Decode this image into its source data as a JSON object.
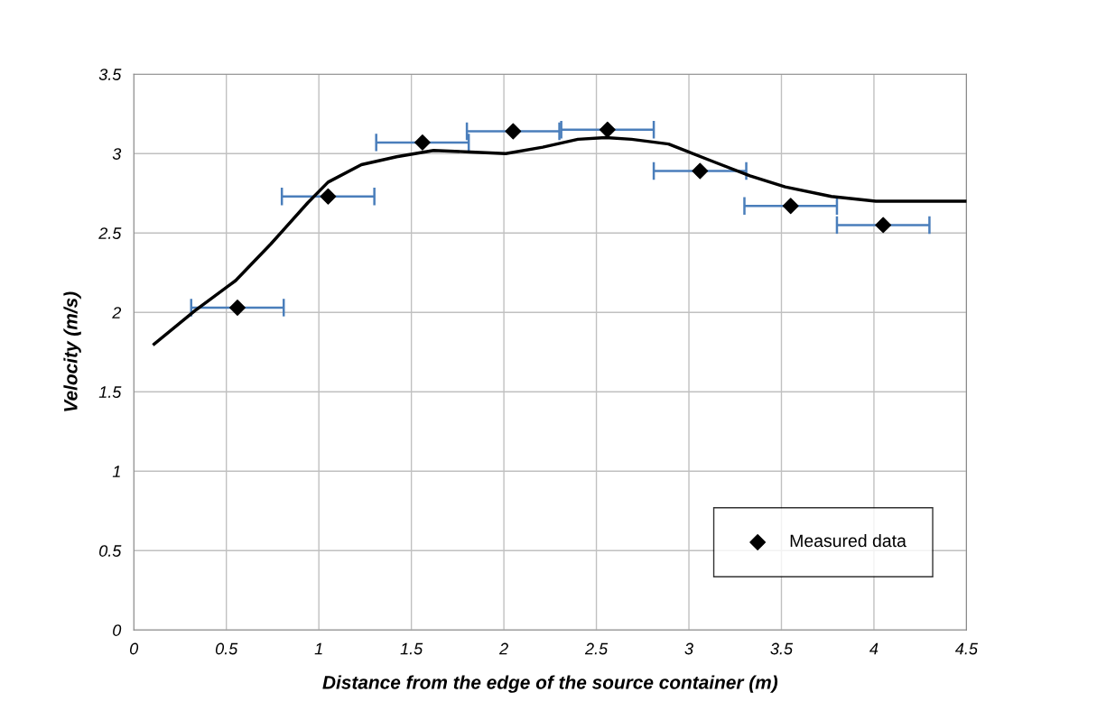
{
  "chart_data": {
    "type": "scatter",
    "xlabel": "Distance from the edge of the source container (m)",
    "ylabel": "Velocity (m/s)",
    "xlim": [
      0,
      4.5
    ],
    "xticks": [
      0,
      0.5,
      1,
      1.5,
      2,
      2.5,
      3,
      3.5,
      4,
      4.5
    ],
    "ylim": [
      0,
      3.5
    ],
    "yticks": [
      0,
      0.5,
      1,
      1.5,
      2,
      2.5,
      3,
      3.5
    ],
    "grid": true,
    "legend": "bottom right",
    "series": [
      {
        "name": "Measured data",
        "marker": "diamond",
        "color": "#000000",
        "x": [
          0.56,
          1.05,
          1.56,
          2.05,
          2.56,
          3.06,
          3.55,
          4.05
        ],
        "values": [
          2.03,
          2.73,
          3.07,
          3.14,
          3.15,
          2.89,
          2.67,
          2.55
        ],
        "xerrors": [
          0.25,
          0.25,
          0.25,
          0.25,
          0.25,
          0.25,
          0.25,
          0.25
        ]
      },
      {
        "type": "line",
        "color": "#000000",
        "marker": "none",
        "line_style": "solid",
        "x": [
          0.11,
          0.33,
          0.55,
          0.74,
          0.94,
          1.05,
          1.23,
          1.42,
          1.62,
          1.82,
          2.01,
          2.21,
          2.4,
          2.55,
          2.69,
          2.89,
          3.13,
          3.33,
          3.52,
          3.77,
          4.01,
          4.21,
          4.5
        ],
        "values": [
          1.8,
          2.01,
          2.2,
          2.43,
          2.69,
          2.82,
          2.93,
          2.98,
          3.02,
          3.01,
          3.0,
          3.04,
          3.09,
          3.1,
          3.09,
          3.06,
          2.95,
          2.86,
          2.79,
          2.73,
          2.7,
          2.7,
          2.7
        ]
      }
    ]
  }
}
